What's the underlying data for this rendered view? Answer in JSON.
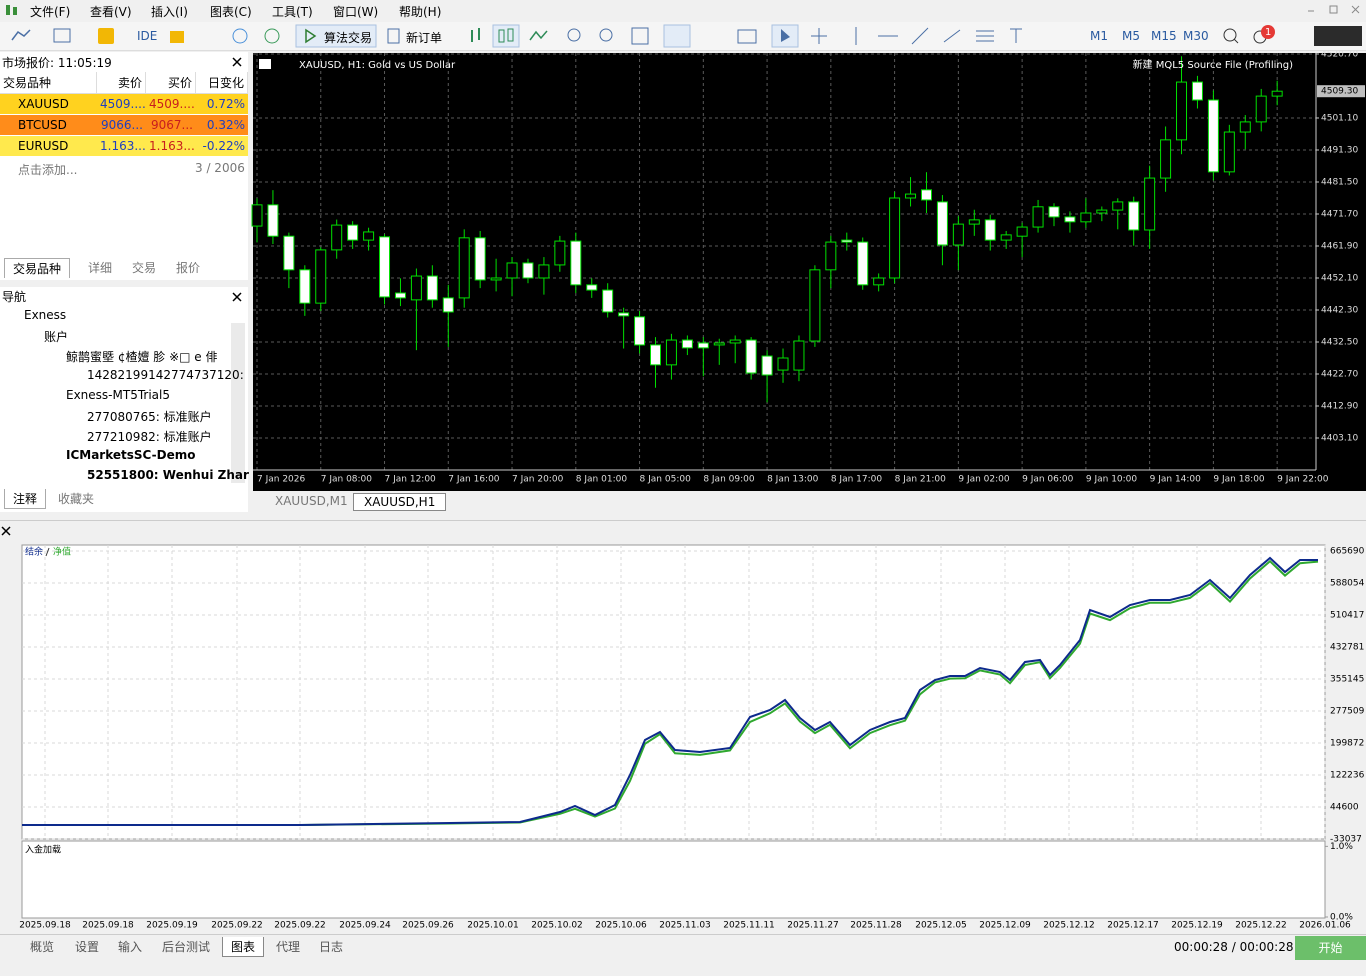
{
  "menu": [
    "文件(F)",
    "查看(V)",
    "插入(I)",
    "图表(C)",
    "工具(T)",
    "窗口(W)",
    "帮助(H)"
  ],
  "toolbar": {
    "ide": "IDE",
    "algo_trading": "算法交易",
    "new_order": "新订单",
    "timeframes": [
      "M1",
      "M5",
      "M15",
      "M30"
    ],
    "notifications": "1"
  },
  "market_watch": {
    "title": "市场报价: 11:05:19",
    "headers": [
      "交易品种",
      "卖价",
      "买价",
      "日变化"
    ],
    "rows": [
      [
        "XAUUSD",
        "4509....",
        "4509....",
        "0.72%"
      ],
      [
        "BTCUSD",
        "9066...",
        "9067...",
        "0.32%"
      ],
      [
        "EURUSD",
        "1.163...",
        "1.163...",
        "-0.22%"
      ]
    ],
    "add": "点击添加...",
    "count": "3 / 2006",
    "tabs": [
      "交易品种",
      "详细",
      "交易",
      "报价"
    ]
  },
  "navigator": {
    "title": "导航",
    "items": [
      "Exness",
      "账户",
      "鲸鹊蜜塈 ¢楂嬗  胗  ※□ e 俳",
      "14282199142774737120:",
      "Exness-MT5Trial5",
      "277080765: 标准账户",
      "277210982: 标准账户",
      "ICMarketsSC-Demo",
      "52551800: Wenhui Zhar"
    ],
    "tabs": [
      "注释",
      "收藏夹"
    ]
  },
  "chart_tabs": [
    "XAUUSD,M1",
    "XAUUSD,H1"
  ],
  "chart_data": [
    {
      "type": "candlestick",
      "title": "XAUUSD, H1:  Gold vs US Dollar",
      "annotation": "新建 MQL5 Source File (Profiling)",
      "categories": [
        "7 Jan 2026",
        null,
        null,
        null,
        "7 Jan 08:00",
        null,
        null,
        null,
        "7 Jan 12:00",
        null,
        null,
        null,
        "7 Jan 16:00",
        null,
        null,
        null,
        "7 Jan 20:00",
        null,
        null,
        null,
        "8 Jan 01:00",
        null,
        null,
        null,
        "8 Jan 05:00",
        null,
        null,
        null,
        "8 Jan 09:00",
        null,
        null,
        null,
        "8 Jan 13:00",
        null,
        null,
        null,
        "8 Jan 17:00",
        null,
        null,
        null,
        "8 Jan 21:00",
        null,
        null,
        null,
        "9 Jan 02:00",
        null,
        null,
        null,
        "9 Jan 06:00",
        null,
        null,
        null,
        "9 Jan 10:00",
        null,
        null,
        null,
        "9 Jan 14:00",
        null,
        null,
        null,
        "9 Jan 18:00",
        null,
        null,
        null,
        "9 Jan 22:00"
      ],
      "ohlc": [
        [
          4468.0,
          4476.5,
          4463.0,
          4474.5
        ],
        [
          4474.5,
          4479.0,
          4462.5,
          4464.9
        ],
        [
          4464.9,
          4466.0,
          4449.0,
          4454.6
        ],
        [
          4454.6,
          4456.0,
          4440.5,
          4444.4
        ],
        [
          4444.4,
          4461.5,
          4442.0,
          4460.7
        ],
        [
          4460.7,
          4470.0,
          4458.0,
          4468.3
        ],
        [
          4468.3,
          4469.5,
          4461.0,
          4463.7
        ],
        [
          4463.7,
          4467.5,
          4460.5,
          4466.2
        ],
        [
          4464.7,
          4465.5,
          4444.0,
          4446.3
        ],
        [
          4447.5,
          4452.0,
          4443.5,
          4446.0
        ],
        [
          4445.4,
          4455.0,
          4430.0,
          4452.7
        ],
        [
          4452.7,
          4456.0,
          4443.0,
          4445.4
        ],
        [
          4446.0,
          4450.0,
          4431.0,
          4441.7
        ],
        [
          4446.0,
          4467.0,
          4443.0,
          4464.4
        ],
        [
          4464.4,
          4466.5,
          4449.0,
          4451.5
        ],
        [
          4451.5,
          4458.0,
          4448.0,
          4452.1
        ],
        [
          4452.1,
          4458.5,
          4446.5,
          4456.7
        ],
        [
          4456.7,
          4458.0,
          4450.5,
          4452.1
        ],
        [
          4452.1,
          4458.5,
          4447.0,
          4456.1
        ],
        [
          4456.1,
          4465.0,
          4454.0,
          4463.4
        ],
        [
          4463.4,
          4466.0,
          4447.5,
          4450.0
        ],
        [
          4450.0,
          4452.0,
          4446.0,
          4448.4
        ],
        [
          4448.4,
          4450.5,
          4440.0,
          4441.7
        ],
        [
          4441.4,
          4443.0,
          4430.5,
          4440.5
        ],
        [
          4440.2,
          4442.0,
          4429.0,
          4431.6
        ],
        [
          4431.6,
          4434.0,
          4418.5,
          4425.5
        ],
        [
          4425.5,
          4435.0,
          4421.0,
          4433.1
        ],
        [
          4433.1,
          4434.5,
          4428.5,
          4430.7
        ],
        [
          4432.2,
          4434.0,
          4422.0,
          4430.7
        ],
        [
          4431.6,
          4433.5,
          4425.5,
          4432.2
        ],
        [
          4432.2,
          4434.5,
          4426.0,
          4433.1
        ],
        [
          4433.1,
          4434.0,
          4421.0,
          4423.0
        ],
        [
          4428.2,
          4430.0,
          4414.0,
          4422.4
        ],
        [
          4423.9,
          4430.5,
          4420.0,
          4427.6
        ],
        [
          4423.9,
          4434.5,
          4420.5,
          4432.8
        ],
        [
          4432.8,
          4456.0,
          4431.0,
          4454.6
        ],
        [
          4454.6,
          4465.0,
          4449.0,
          4463.1
        ],
        [
          4463.7,
          4466.0,
          4460.5,
          4463.1
        ],
        [
          4463.1,
          4464.5,
          4448.5,
          4450.0
        ],
        [
          4450.0,
          4453.5,
          4448.0,
          4452.1
        ],
        [
          4452.1,
          4478.5,
          4450.5,
          4476.6
        ],
        [
          4476.6,
          4483.0,
          4474.0,
          4477.8
        ],
        [
          4479.1,
          4484.5,
          4472.0,
          4476.0
        ],
        [
          4475.4,
          4477.5,
          4456.0,
          4462.2
        ],
        [
          4462.2,
          4471.0,
          4454.5,
          4468.6
        ],
        [
          4468.6,
          4473.0,
          4465.0,
          4469.9
        ],
        [
          4469.9,
          4471.5,
          4460.5,
          4463.7
        ],
        [
          4463.7,
          4466.5,
          4461.0,
          4465.3
        ],
        [
          4464.9,
          4469.0,
          4458.5,
          4467.7
        ],
        [
          4467.7,
          4476.0,
          4466.0,
          4473.9
        ],
        [
          4473.9,
          4475.0,
          4468.0,
          4470.8
        ],
        [
          4470.8,
          4472.5,
          4466.0,
          4469.3
        ],
        [
          4469.3,
          4476.5,
          4467.5,
          4472.0
        ],
        [
          4472.0,
          4474.0,
          4469.5,
          4472.9
        ],
        [
          4472.9,
          4476.5,
          4467.0,
          4475.4
        ],
        [
          4475.4,
          4477.0,
          4462.0,
          4466.8
        ],
        [
          4466.8,
          4486.5,
          4461.0,
          4482.7
        ],
        [
          4482.7,
          4498.5,
          4478.5,
          4494.4
        ],
        [
          4494.4,
          4520.0,
          4490.0,
          4512.1
        ],
        [
          4512.1,
          4514.0,
          4504.0,
          4506.6
        ],
        [
          4506.6,
          4509.5,
          4482.0,
          4484.6
        ],
        [
          4484.6,
          4499.0,
          4483.5,
          4496.8
        ],
        [
          4496.8,
          4502.0,
          4491.5,
          4499.9
        ],
        [
          4499.9,
          4510.0,
          4497.0,
          4507.8
        ],
        [
          4507.8,
          4512.5,
          4505.0,
          4509.3
        ]
      ],
      "colors": {
        "up": "#00e000",
        "down": "#ffffff",
        "wick": "#00e000"
      },
      "ylim": [
        4393.3,
        4521.0
      ],
      "yticks": [
        {
          "value": 4403.1,
          "label": "4403.10"
        },
        {
          "value": 4412.9,
          "label": "4412.90"
        },
        {
          "value": 4422.7,
          "label": "4422.70"
        },
        {
          "value": 4432.5,
          "label": "4432.50"
        },
        {
          "value": 4442.3,
          "label": "4442.30"
        },
        {
          "value": 4452.1,
          "label": "4452.10"
        },
        {
          "value": 4461.9,
          "label": "4461.90"
        },
        {
          "value": 4471.7,
          "label": "4471.70"
        },
        {
          "value": 4481.5,
          "label": "4481.50"
        },
        {
          "value": 4491.3,
          "label": "4491.30"
        },
        {
          "value": 4501.1,
          "label": "4501.10"
        },
        {
          "value": 4520.7,
          "label": "4520.70"
        }
      ],
      "current_price": {
        "value": 4509.3,
        "label": "4509.30"
      },
      "grid": true
    },
    {
      "type": "line",
      "x": [
        0,
        278,
        428,
        498,
        538,
        553,
        573,
        593,
        608,
        623,
        638,
        653,
        678,
        708,
        728,
        748,
        763,
        778,
        793,
        808,
        828,
        848,
        868,
        883,
        898,
        913,
        928,
        943,
        958,
        978,
        988,
        1003,
        1018,
        1028,
        1038,
        1058,
        1068,
        1088,
        1108,
        1128,
        1148,
        1168,
        1188,
        1208,
        1228,
        1248,
        1263,
        1278,
        1296
      ],
      "series": [
        {
          "name": "结余",
          "color": "#0d2a8c",
          "values": [
            1000,
            1000,
            5780,
            8200,
            32470,
            47020,
            25190,
            49450,
            122240,
            207150,
            226560,
            182890,
            178040,
            187740,
            262950,
            279930,
            304190,
            260520,
            231410,
            250820,
            195020,
            231410,
            250820,
            260520,
            328460,
            352720,
            362420,
            362420,
            381830,
            372130,
            352720,
            396390,
            401240,
            364850,
            389110,
            449760,
            522540,
            505560,
            534670,
            546800,
            546800,
            558930,
            595330,
            551660,
            607460,
            648700,
            614740,
            643850,
            643850
          ]
        },
        {
          "name": "净值",
          "color": "#2fa82f",
          "values": [
            1000,
            1000,
            4500,
            6900,
            28000,
            40200,
            21500,
            41000,
            108000,
            198000,
            221500,
            175000,
            171000,
            182000,
            251000,
            272000,
            296000,
            252000,
            224000,
            244000,
            187000,
            224000,
            243000,
            254000,
            318000,
            347000,
            356000,
            357000,
            376000,
            366000,
            345000,
            389000,
            396000,
            357000,
            382000,
            441000,
            514000,
            498000,
            527000,
            540000,
            540000,
            552000,
            588000,
            543000,
            599000,
            641000,
            606000,
            636000,
            640000
          ]
        }
      ],
      "xlim": [
        0,
        1303
      ],
      "xticks": [
        {
          "value": 23,
          "label": "2025.09.18"
        },
        {
          "value": 86,
          "label": "2025.09.18"
        },
        {
          "value": 150,
          "label": "2025.09.19"
        },
        {
          "value": 215,
          "label": "2025.09.22"
        },
        {
          "value": 278,
          "label": "2025.09.22"
        },
        {
          "value": 343,
          "label": "2025.09.24"
        },
        {
          "value": 406,
          "label": "2025.09.26"
        },
        {
          "value": 471,
          "label": "2025.10.01"
        },
        {
          "value": 535,
          "label": "2025.10.02"
        },
        {
          "value": 599,
          "label": "2025.10.06"
        },
        {
          "value": 663,
          "label": "2025.11.03"
        },
        {
          "value": 727,
          "label": "2025.11.11"
        },
        {
          "value": 791,
          "label": "2025.11.27"
        },
        {
          "value": 854,
          "label": "2025.11.28"
        },
        {
          "value": 919,
          "label": "2025.12.05"
        },
        {
          "value": 983,
          "label": "2025.12.09"
        },
        {
          "value": 1047,
          "label": "2025.12.12"
        },
        {
          "value": 1111,
          "label": "2025.12.17"
        },
        {
          "value": 1175,
          "label": "2025.12.19"
        },
        {
          "value": 1239,
          "label": "2025.12.22"
        },
        {
          "value": 1303,
          "label": "2026.01.06"
        }
      ],
      "ylim": [
        -33037,
        680247
      ],
      "yticks": [
        -33037,
        44600,
        122236,
        199872,
        277509,
        355145,
        432781,
        510417,
        588054,
        665690
      ],
      "grid": true,
      "subpanel": {
        "title": "入金加载",
        "ylim": [
          0,
          1.09
        ],
        "yticks": [
          {
            "value": 0,
            "label": "0.0%"
          },
          {
            "value": 1,
            "label": "1.0%"
          }
        ]
      }
    }
  ],
  "tester_tabs": [
    "概览",
    "设置",
    "输入",
    "后台测试",
    "图表",
    "代理",
    "日志"
  ],
  "elapsed": "00:00:28 / 00:00:28",
  "start_button": "开始"
}
